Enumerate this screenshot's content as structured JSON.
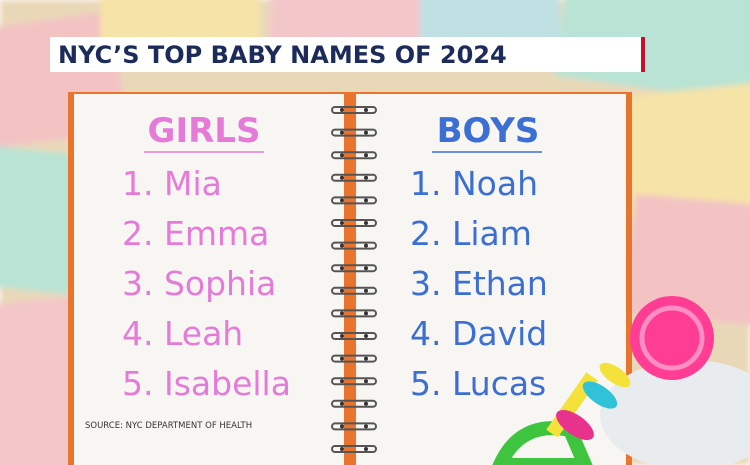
{
  "header": {
    "title": "NYC’S TOP BABY NAMES OF 2024"
  },
  "girls": {
    "heading": "GIRLS",
    "names": [
      "1. Mia",
      "2. Emma",
      "3. Sophia",
      "4. Leah",
      "5. Isabella"
    ]
  },
  "boys": {
    "heading": "BOYS",
    "names": [
      "1. Noah",
      "2. Liam",
      "3. Ethan",
      "4. David",
      "5. Lucas"
    ]
  },
  "source": "SOURCE: NYC DEPARTMENT OF HEALTH"
}
